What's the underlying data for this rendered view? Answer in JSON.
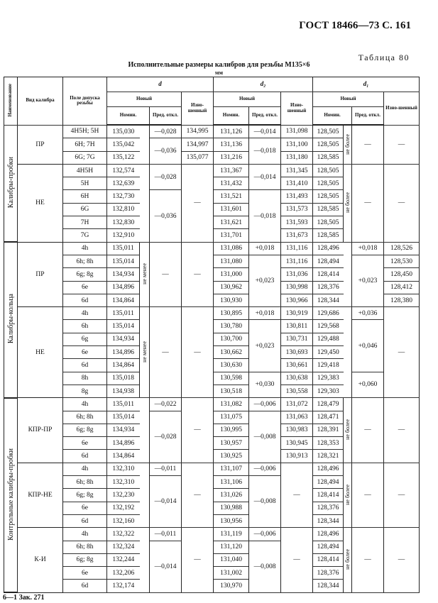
{
  "page_header": "ГОСТ 18466—73 С. 161",
  "table_label": "Таблица 80",
  "caption": "Исполнительные размеры калибров для резьбы М135×6",
  "units": "мм",
  "footer": "6—1 Зак. 271",
  "headers": {
    "name": "Наименование",
    "kind": "Вид калибра",
    "field": "Поле допуска резьбы",
    "d": "d",
    "d2": "d₂",
    "d1": "d₁",
    "new": "Новый",
    "worn": "Изно-шенный",
    "nom": "Номин.",
    "dev": "Пред. откл."
  },
  "groups": [
    {
      "name": "Калибры-пробки",
      "kinds": [
        {
          "kind": "ПР",
          "rows": [
            [
              "4H5H; 5H",
              "135,030",
              {
                "v": "",
                "span": 3
              },
              "—0,028",
              "134,995",
              "131,126",
              "—0,014",
              "131,098",
              "128,505",
              {
                "v": "не более",
                "span": 3
              },
              {
                "v": "—",
                "span": 3
              },
              {
                "v": "—",
                "span": 3
              }
            ],
            [
              "6H; 7H",
              "135,042",
              null,
              {
                "v": "—0,036",
                "span": 2
              },
              "134,997",
              "131,136",
              {
                "v": "—0,018",
                "span": 2
              },
              "131,100",
              "128,505",
              null,
              null,
              null
            ],
            [
              "6G; 7G",
              "135,122",
              null,
              null,
              "135,077",
              "131,216",
              null,
              "131,180",
              "128,585",
              null,
              null,
              null
            ]
          ]
        },
        {
          "kind": "НЕ",
          "rows": [
            [
              "4H5H",
              "132,574",
              {
                "v": "",
                "span": 6
              },
              {
                "v": "—0,028",
                "span": 2
              },
              {
                "v": "—",
                "span": 6
              },
              "131,367",
              {
                "v": "—0,014",
                "span": 2
              },
              "131,345",
              "128,505",
              {
                "v": "не более",
                "span": 6
              },
              {
                "v": "—",
                "span": 6
              },
              {
                "v": "—",
                "span": 6
              }
            ],
            [
              "5H",
              "132,639",
              null,
              null,
              null,
              "131,432",
              null,
              "131,410",
              "128,505",
              null,
              null,
              null
            ],
            [
              "6H",
              "132,730",
              null,
              {
                "v": "—0,036",
                "span": 4
              },
              null,
              "131,521",
              {
                "v": "—0,018",
                "span": 4
              },
              "131,493",
              "128,505",
              null,
              null,
              null
            ],
            [
              "6G",
              "132,810",
              null,
              null,
              null,
              "131,601",
              null,
              "131,573",
              "128,585",
              null,
              null,
              null
            ],
            [
              "7H",
              "132,830",
              null,
              null,
              null,
              "131,621",
              null,
              "131,593",
              "128,505",
              null,
              null,
              null
            ],
            [
              "7G",
              "132,910",
              null,
              null,
              null,
              "131,701",
              null,
              "131,673",
              "128,585",
              null,
              null,
              null
            ]
          ]
        }
      ]
    },
    {
      "name": "Калибры-кольца",
      "kinds": [
        {
          "kind": "ПР",
          "rows": [
            [
              "4h",
              "135,011",
              {
                "v": "не менее",
                "span": 5
              },
              {
                "v": "—",
                "span": 5
              },
              {
                "v": "—",
                "span": 5
              },
              "131,086",
              "+0,018",
              "131,116",
              "128,496",
              {
                "v": "",
                "span": 5
              },
              "+0,018",
              "128,526"
            ],
            [
              "6h; 8h",
              "135,014",
              null,
              null,
              null,
              "131,080",
              {
                "v": "+0,023",
                "span": 4
              },
              "131,116",
              "128,494",
              null,
              {
                "v": "+0,023",
                "span": 4
              },
              "128,530"
            ],
            [
              "6g; 8g",
              "134,934",
              null,
              null,
              null,
              "131,000",
              null,
              "131,036",
              "128,414",
              null,
              null,
              "128,450"
            ],
            [
              "6e",
              "134,896",
              null,
              null,
              null,
              "130,962",
              null,
              "130,998",
              "128,376",
              null,
              null,
              "128,412"
            ],
            [
              "6d",
              "134,864",
              null,
              null,
              null,
              "130,930",
              null,
              "130,966",
              "128,344",
              null,
              null,
              "128,380"
            ]
          ]
        },
        {
          "kind": "НЕ",
          "rows": [
            [
              "4h",
              "135,011",
              {
                "v": "не менее",
                "span": 7
              },
              {
                "v": "—",
                "span": 7
              },
              {
                "v": "—",
                "span": 7
              },
              "130,895",
              "+0,018",
              "130,919",
              "129,686",
              {
                "v": "",
                "span": 7
              },
              "+0,036",
              {
                "v": "—",
                "span": 7
              }
            ],
            [
              "6h",
              "135,014",
              null,
              null,
              null,
              "130,780",
              {
                "v": "+0,023",
                "span": 4
              },
              "130,811",
              "129,568",
              null,
              {
                "v": "+0,046",
                "span": 4
              },
              null
            ],
            [
              "6g",
              "134,934",
              null,
              null,
              null,
              "130,700",
              null,
              "130,731",
              "129,488",
              null,
              null,
              null
            ],
            [
              "6e",
              "134,896",
              null,
              null,
              null,
              "130,662",
              null,
              "130,693",
              "129,450",
              null,
              null,
              null
            ],
            [
              "6d",
              "134,864",
              null,
              null,
              null,
              "130,630",
              null,
              "130,661",
              "129,418",
              null,
              null,
              null
            ],
            [
              "8h",
              "135,018",
              null,
              null,
              null,
              "130,598",
              {
                "v": "+0,030",
                "span": 2
              },
              "130,638",
              "129,383",
              null,
              {
                "v": "+0,060",
                "span": 2
              },
              null
            ],
            [
              "8g",
              "134,938",
              null,
              null,
              null,
              "130,518",
              null,
              "130,558",
              "129,303",
              null,
              null,
              null
            ]
          ]
        }
      ]
    },
    {
      "name": "Контрольные калибры-пробки",
      "kinds": [
        {
          "kind": "КПР-ПР",
          "rows": [
            [
              "4h",
              "135,011",
              {
                "v": "",
                "span": 5
              },
              "—0,022",
              {
                "v": "—",
                "span": 5
              },
              "131,082",
              "—0,006",
              "131,072",
              "128,479",
              {
                "v": "не более",
                "span": 5
              },
              {
                "v": "—",
                "span": 5
              },
              {
                "v": "—",
                "span": 5
              }
            ],
            [
              "6h; 8h",
              "135,014",
              null,
              {
                "v": "—0,028",
                "span": 4
              },
              null,
              "131,075",
              {
                "v": "—0,008",
                "span": 4
              },
              "131,063",
              "128,471",
              null,
              null,
              null
            ],
            [
              "6g; 8g",
              "134,934",
              null,
              null,
              null,
              "130,995",
              null,
              "130,983",
              "128,391",
              null,
              null,
              null
            ],
            [
              "6e",
              "134,896",
              null,
              null,
              null,
              "130,957",
              null,
              "130,945",
              "128,353",
              null,
              null,
              null
            ],
            [
              "6d",
              "134,864",
              null,
              null,
              null,
              "130,925",
              null,
              "130,913",
              "128,321",
              null,
              null,
              null
            ]
          ]
        },
        {
          "kind": "КПР-НЕ",
          "rows": [
            [
              "4h",
              "132,310",
              {
                "v": "",
                "span": 5
              },
              "—0,011",
              {
                "v": "—",
                "span": 5
              },
              "131,107",
              "—0,006",
              {
                "v": "—",
                "span": 5
              },
              "128,496",
              {
                "v": "не более",
                "span": 5
              },
              {
                "v": "—",
                "span": 5
              },
              {
                "v": "—",
                "span": 5
              }
            ],
            [
              "6h; 8h",
              "132,310",
              null,
              {
                "v": "—0,014",
                "span": 4
              },
              null,
              "131,106",
              {
                "v": "—0,008",
                "span": 4
              },
              null,
              "128,494",
              null,
              null,
              null
            ],
            [
              "6g; 8g",
              "132,230",
              null,
              null,
              null,
              "131,026",
              null,
              null,
              "128,414",
              null,
              null,
              null
            ],
            [
              "6e",
              "132,192",
              null,
              null,
              null,
              "130,988",
              null,
              null,
              "128,376",
              null,
              null,
              null
            ],
            [
              "6d",
              "132,160",
              null,
              null,
              null,
              "130,956",
              null,
              null,
              "128,344",
              null,
              null,
              null
            ]
          ]
        },
        {
          "kind": "К-И",
          "rows": [
            [
              "4h",
              "132,322",
              {
                "v": "",
                "span": 5
              },
              "—0,011",
              {
                "v": "—",
                "span": 5
              },
              "131,119",
              "—0,006",
              {
                "v": "—",
                "span": 5
              },
              "128,496",
              {
                "v": "не более",
                "span": 5
              },
              {
                "v": "—",
                "span": 5
              },
              {
                "v": "—",
                "span": 5
              }
            ],
            [
              "6h; 8h",
              "132,324",
              null,
              {
                "v": "—0,014",
                "span": 4
              },
              null,
              "131,120",
              {
                "v": "—0,008",
                "span": 4
              },
              null,
              "128,494",
              null,
              null,
              null
            ],
            [
              "6g; 8g",
              "132,244",
              null,
              null,
              null,
              "131,040",
              null,
              null,
              "128,414",
              null,
              null,
              null
            ],
            [
              "6e",
              "132,206",
              null,
              null,
              null,
              "131,002",
              null,
              null,
              "128,376",
              null,
              null,
              null
            ],
            [
              "6d",
              "132,174",
              null,
              null,
              null,
              "130,970",
              null,
              null,
              "128,344",
              null,
              null,
              null
            ]
          ]
        }
      ]
    }
  ]
}
